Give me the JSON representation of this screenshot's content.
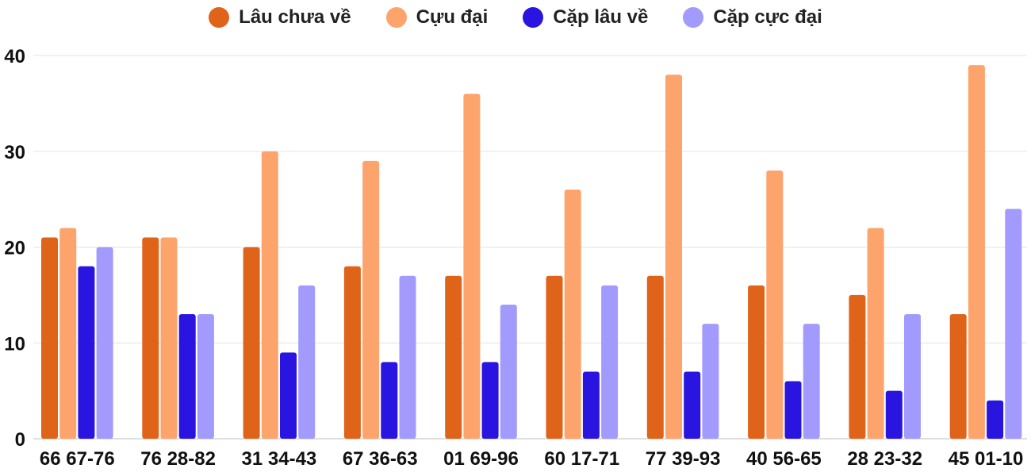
{
  "chart_data": {
    "type": "bar",
    "title": "",
    "xlabel": "",
    "ylabel": "",
    "ylim": [
      0,
      40
    ],
    "yticks": [
      0,
      10,
      20,
      30,
      40
    ],
    "grid": true,
    "legend_position": "top-center",
    "categories": [
      "66 67-76",
      "76 28-82",
      "31 34-43",
      "67 36-63",
      "01 69-96",
      "60 17-71",
      "77 39-93",
      "40 56-65",
      "28 23-32",
      "45 01-10"
    ],
    "series": [
      {
        "name": "Lâu chưa về",
        "color": "#e0631a",
        "values": [
          21,
          21,
          20,
          18,
          17,
          17,
          17,
          16,
          15,
          13
        ]
      },
      {
        "name": "Cựu đại",
        "color": "#fda46c",
        "values": [
          22,
          21,
          30,
          29,
          36,
          26,
          38,
          28,
          22,
          39
        ]
      },
      {
        "name": "Cặp lâu về",
        "color": "#2a15e0",
        "values": [
          18,
          13,
          9,
          8,
          8,
          7,
          7,
          6,
          5,
          4
        ]
      },
      {
        "name": "Cặp cực đại",
        "color": "#a29bfd",
        "values": [
          20,
          13,
          16,
          17,
          14,
          16,
          12,
          12,
          13,
          24
        ]
      }
    ]
  }
}
